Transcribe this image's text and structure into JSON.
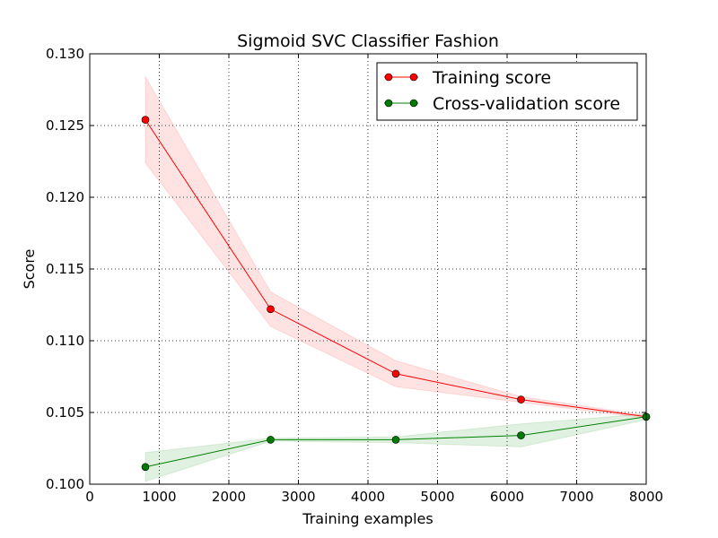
{
  "chart_data": {
    "type": "line",
    "title": "Sigmoid SVC Classifier Fashion",
    "xlabel": "Training examples",
    "ylabel": "Score",
    "xlim": [
      0,
      8000
    ],
    "ylim": [
      0.1,
      0.13
    ],
    "xticks": [
      "0",
      "1000",
      "2000",
      "3000",
      "4000",
      "5000",
      "6000",
      "7000",
      "8000"
    ],
    "yticks": [
      "0.100",
      "0.105",
      "0.110",
      "0.115",
      "0.120",
      "0.125",
      "0.130"
    ],
    "grid": true,
    "legend_position": "top-right",
    "x": [
      800,
      2600,
      4400,
      6200,
      8000
    ],
    "series": [
      {
        "name": "Training score",
        "color": "#ff0000",
        "band_color": "#ffcccc",
        "marker_color": "#ff0000",
        "values": [
          0.1254,
          0.1122,
          0.1077,
          0.1059,
          0.1047
        ],
        "lower": [
          0.1224,
          0.111,
          0.1068,
          0.1057,
          0.1046
        ],
        "upper": [
          0.1284,
          0.1134,
          0.1086,
          0.1061,
          0.1048
        ]
      },
      {
        "name": "Cross-validation score",
        "color": "#008000",
        "band_color": "#c8e6c8",
        "marker_color": "#007a00",
        "values": [
          0.1012,
          0.1031,
          0.1031,
          0.1034,
          0.1047
        ],
        "lower": [
          0.1002,
          0.103,
          0.1029,
          0.1026,
          0.1045
        ],
        "upper": [
          0.1022,
          0.1032,
          0.1033,
          0.1042,
          0.1049
        ]
      }
    ]
  }
}
